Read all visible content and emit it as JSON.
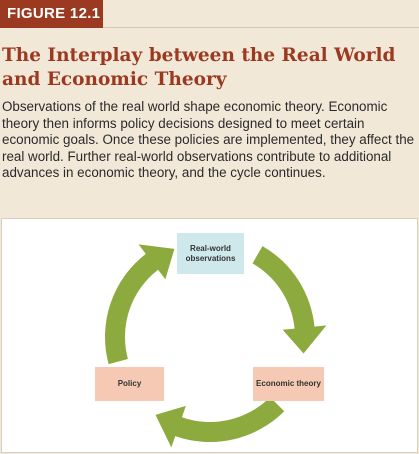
{
  "figure": {
    "tag": "FIGURE 12.1",
    "title": "The Interplay between the Real World and Economic Theory",
    "caption": "Observations of the real world shape economic theory. Economic theory then informs policy decisions designed to meet certain economic goals. Once these policies are implemented, they affect the real world. Further real-world observations contribute to additional advances in economic theory, and the cycle continues."
  },
  "diagram": {
    "nodes": {
      "real_world": {
        "label": "Real-world observations",
        "color": "#cfe8ec"
      },
      "economic_theory": {
        "label": "Economic theory",
        "color": "#f5c9b3"
      },
      "policy": {
        "label": "Policy",
        "color": "#f5c9b3"
      }
    },
    "arrow_color": "#8daa3f"
  },
  "colors": {
    "accent": "#9c3a21",
    "background": "#f1e8d8"
  }
}
